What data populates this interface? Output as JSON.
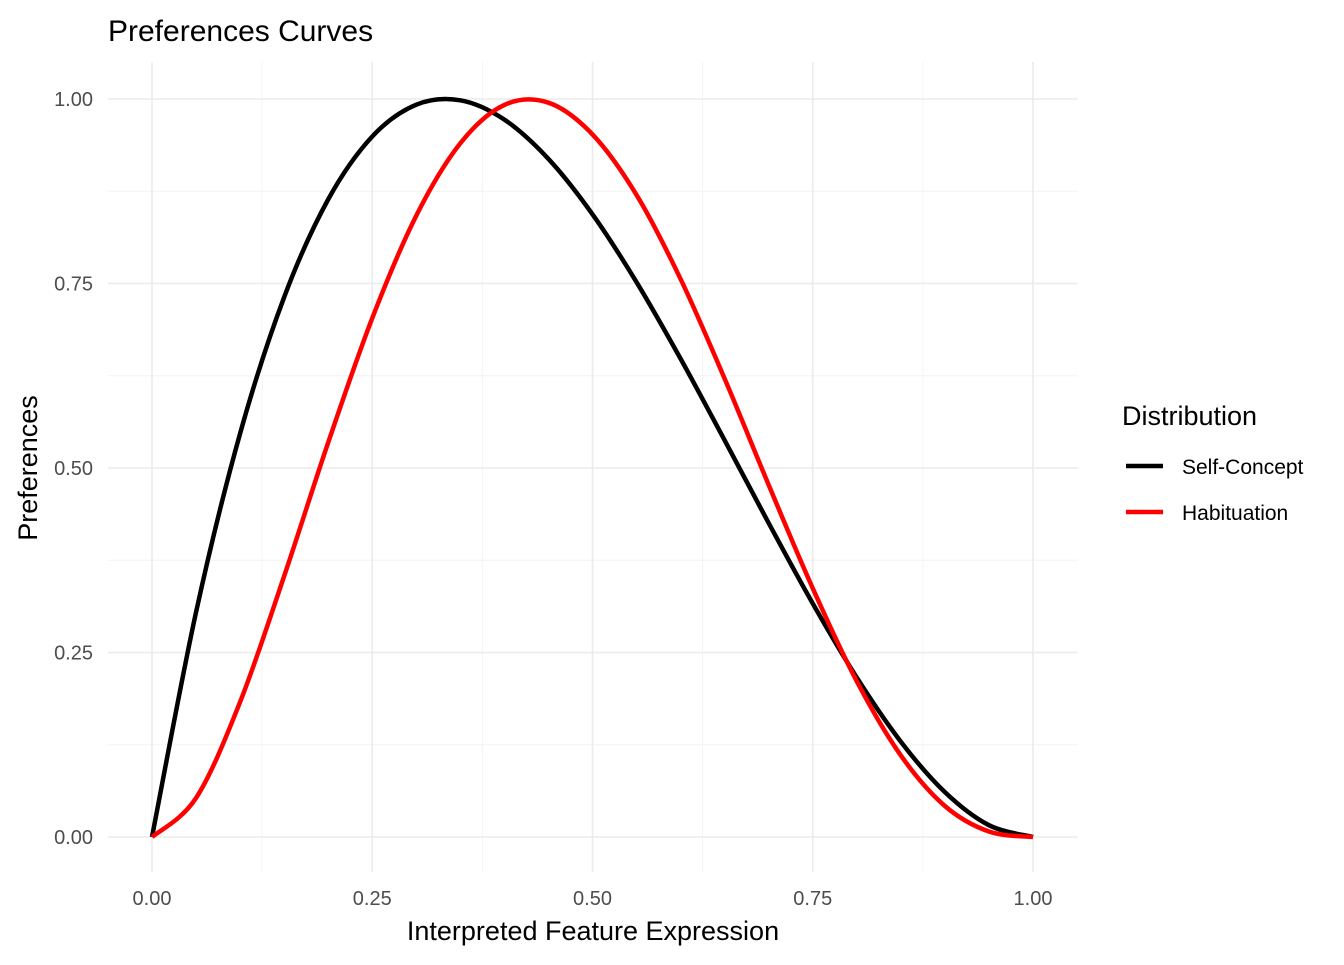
{
  "chart_data": {
    "type": "line",
    "title": "Preferences Curves",
    "xlabel": "Interpreted Feature Expression",
    "ylabel": "Preferences",
    "xlim": [
      0,
      1
    ],
    "ylim": [
      0,
      1
    ],
    "grid": true,
    "x_ticks": [
      "0.00",
      "0.25",
      "0.50",
      "0.75",
      "1.00"
    ],
    "y_ticks": [
      "0.00",
      "0.25",
      "0.50",
      "0.75",
      "1.00"
    ],
    "legend": {
      "title": "Distribution",
      "placement": "right"
    },
    "x": [
      0,
      0.05,
      0.1,
      0.15,
      0.2,
      0.25,
      0.3,
      0.35,
      0.4,
      0.45,
      0.5,
      0.55,
      0.6,
      0.65,
      0.7,
      0.75,
      0.8,
      0.85,
      0.9,
      0.95,
      1.0
    ],
    "series": [
      {
        "name": "Self-Concept",
        "color": "#000000",
        "values": [
          0,
          0.3046,
          0.5468,
          0.7315,
          0.864,
          0.9492,
          0.9923,
          0.9982,
          0.972,
          0.9188,
          0.8438,
          0.7518,
          0.648,
          0.5375,
          0.4253,
          0.3164,
          0.216,
          0.1291,
          0.0608,
          0.016,
          0
        ]
      },
      {
        "name": "Habituation",
        "color": "#ff0000",
        "values": [
          0,
          0.0529,
          0.183,
          0.3535,
          0.5345,
          0.703,
          0.842,
          0.94,
          0.992,
          0.995,
          0.952,
          0.87,
          0.756,
          0.621,
          0.477,
          0.337,
          0.211,
          0.1105,
          0.042,
          0.0074,
          0
        ]
      }
    ]
  }
}
